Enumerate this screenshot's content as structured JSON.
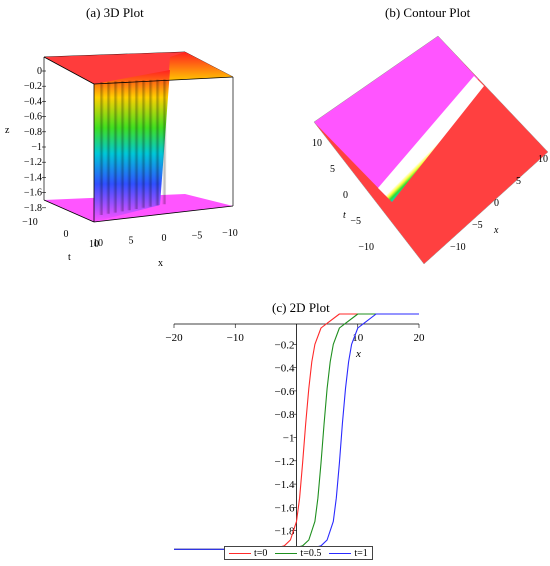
{
  "colors": {
    "t0": "#ff2a2a",
    "t05": "#1f8f1f",
    "t1": "#2a2aff",
    "plane_top": "#ff3c3c",
    "plane_bottom": "#ff55ff"
  },
  "chart_data": [
    {
      "panel": "a",
      "type": "surface",
      "title": "(a) 3D Plot",
      "zlabel": "z",
      "tlabel": "t",
      "xlabel": "x",
      "z_ticks": [
        "0",
        "−0.2",
        "−0.4",
        "−0.6",
        "−0.8",
        "−1",
        "−1.2",
        "−1.4",
        "−1.6",
        "−1.8"
      ],
      "t_ticks": [
        "−10",
        "0",
        "10"
      ],
      "x_ticks": [
        "10",
        "5",
        "0",
        "−5",
        "−10"
      ],
      "zlim": [
        -2,
        0
      ],
      "xlim": [
        -10,
        10
      ],
      "tlim": [
        -10,
        10
      ]
    },
    {
      "panel": "b",
      "type": "heatmap",
      "title": "(b) Contour Plot",
      "tlabel": "t",
      "xlabel": "x",
      "t_ticks": [
        "10",
        "5",
        "0",
        "−5",
        "−10"
      ],
      "x_ticks": [
        "10",
        "5",
        "0",
        "−5",
        "−10"
      ],
      "xlim": [
        -10,
        10
      ],
      "tlim": [
        -10,
        10
      ]
    },
    {
      "panel": "c",
      "type": "line",
      "title": "(c) 2D Plot",
      "xlabel": "x",
      "xlim": [
        -20,
        20
      ],
      "ylim": [
        -2,
        0
      ],
      "x_ticks": [
        {
          "v": -20,
          "label": "−20"
        },
        {
          "v": -10,
          "label": "−10"
        },
        {
          "v": 10,
          "label": "10"
        },
        {
          "v": 20,
          "label": "20"
        }
      ],
      "y_ticks": [
        {
          "v": -0.2,
          "label": "−0.2"
        },
        {
          "v": -0.4,
          "label": "−0.4"
        },
        {
          "v": -0.6,
          "label": "−0.6"
        },
        {
          "v": -0.8,
          "label": "−0.8"
        },
        {
          "v": -1.0,
          "label": "−1"
        },
        {
          "v": -1.2,
          "label": "−1.2"
        },
        {
          "v": -1.4,
          "label": "−1.4"
        },
        {
          "v": -1.6,
          "label": "−1.6"
        },
        {
          "v": -1.8,
          "label": "−1.8"
        }
      ],
      "series": [
        {
          "name": "t=0",
          "color": "#ff2a2a",
          "x": [
            -20,
            -4,
            -2,
            -1,
            0,
            0.5,
            1,
            1.5,
            2,
            2.5,
            3,
            4,
            5,
            7,
            20
          ],
          "y": [
            -1.96,
            -1.96,
            -1.93,
            -1.88,
            -1.72,
            -1.52,
            -1.22,
            -0.88,
            -0.58,
            -0.35,
            -0.2,
            -0.06,
            -0.02,
            0,
            0
          ]
        },
        {
          "name": "t=0.5",
          "color": "#1f8f1f",
          "x": [
            -20,
            -1,
            1,
            2,
            3,
            3.5,
            4,
            4.5,
            5,
            5.5,
            6,
            7,
            8,
            10,
            20
          ],
          "y": [
            -1.96,
            -1.96,
            -1.93,
            -1.88,
            -1.72,
            -1.52,
            -1.22,
            -0.88,
            -0.58,
            -0.35,
            -0.2,
            -0.06,
            -0.02,
            0,
            0
          ]
        },
        {
          "name": "t=1",
          "color": "#2a2aff",
          "x": [
            -20,
            2,
            4,
            5,
            6,
            6.5,
            7,
            7.5,
            8,
            8.5,
            9,
            10,
            11,
            13,
            20
          ],
          "y": [
            -1.96,
            -1.96,
            -1.93,
            -1.88,
            -1.72,
            -1.52,
            -1.22,
            -0.88,
            -0.58,
            -0.35,
            -0.2,
            -0.06,
            -0.02,
            0,
            0
          ]
        }
      ],
      "legend_position": "bottom"
    }
  ]
}
